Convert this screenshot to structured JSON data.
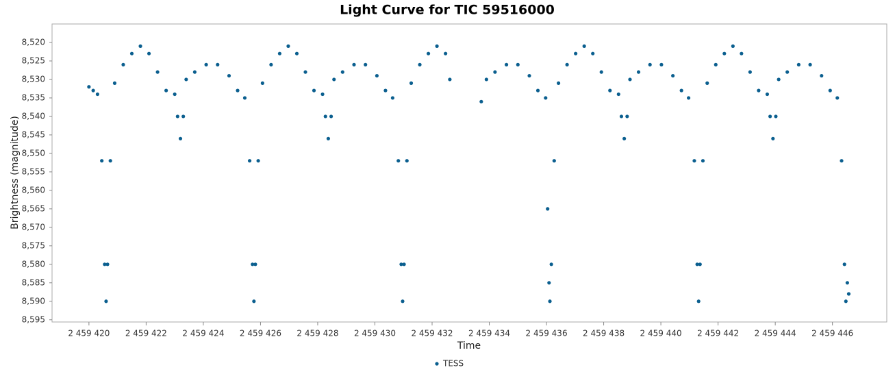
{
  "chart_data": {
    "type": "scatter",
    "title": "Light Curve for TIC 59516000",
    "x_label": "Time",
    "y_label": "Brightness (magnitude)",
    "series": [
      {
        "name": "TESS",
        "color": "#0b5f8f",
        "x": [
          2459420.0,
          2459420.15,
          2459420.3,
          2459420.45,
          2459420.55,
          2459420.6,
          2459420.65,
          2459420.75,
          2459420.9,
          2459421.2,
          2459421.5,
          2459421.8,
          2459422.1,
          2459422.4,
          2459422.7,
          2459423.0,
          2459423.1,
          2459423.2,
          2459423.3,
          2459423.4,
          2459423.7,
          2459424.1,
          2459424.5,
          2459424.9,
          2459425.2,
          2459425.45,
          2459425.62,
          2459425.72,
          2459425.77,
          2459425.82,
          2459425.92,
          2459426.07,
          2459426.37,
          2459426.67,
          2459426.97,
          2459427.27,
          2459427.57,
          2459427.87,
          2459428.17,
          2459428.27,
          2459428.37,
          2459428.47,
          2459428.57,
          2459428.87,
          2459429.27,
          2459429.67,
          2459430.07,
          2459430.37,
          2459430.62,
          2459430.82,
          2459430.92,
          2459430.97,
          2459431.02,
          2459431.12,
          2459431.27,
          2459431.57,
          2459431.87,
          2459432.17,
          2459432.47,
          2459432.62,
          2459433.72,
          2459433.9,
          2459434.2,
          2459434.6,
          2459435.0,
          2459435.4,
          2459435.7,
          2459435.97,
          2459436.04,
          2459436.09,
          2459436.12,
          2459436.17,
          2459436.27,
          2459436.42,
          2459436.72,
          2459437.02,
          2459437.32,
          2459437.62,
          2459437.92,
          2459438.22,
          2459438.52,
          2459438.62,
          2459438.72,
          2459438.82,
          2459438.92,
          2459439.22,
          2459439.62,
          2459440.02,
          2459440.42,
          2459440.72,
          2459440.97,
          2459441.17,
          2459441.27,
          2459441.32,
          2459441.37,
          2459441.47,
          2459441.62,
          2459441.92,
          2459442.22,
          2459442.52,
          2459442.82,
          2459443.12,
          2459443.42,
          2459443.72,
          2459443.82,
          2459443.92,
          2459444.02,
          2459444.12,
          2459444.42,
          2459444.82,
          2459445.22,
          2459445.62,
          2459445.92,
          2459446.17,
          2459446.32,
          2459446.42,
          2459446.47,
          2459446.52,
          2459446.57
        ],
        "values": [
          8.532,
          8.533,
          8.534,
          8.552,
          8.58,
          8.59,
          8.58,
          8.552,
          8.531,
          8.526,
          8.523,
          8.521,
          8.523,
          8.528,
          8.533,
          8.534,
          8.54,
          8.546,
          8.54,
          8.53,
          8.528,
          8.526,
          8.526,
          8.529,
          8.533,
          8.535,
          8.552,
          8.58,
          8.59,
          8.58,
          8.552,
          8.531,
          8.526,
          8.523,
          8.521,
          8.523,
          8.528,
          8.533,
          8.534,
          8.54,
          8.546,
          8.54,
          8.53,
          8.528,
          8.526,
          8.526,
          8.529,
          8.533,
          8.535,
          8.552,
          8.58,
          8.59,
          8.58,
          8.552,
          8.531,
          8.526,
          8.523,
          8.521,
          8.523,
          8.53,
          8.536,
          8.53,
          8.528,
          8.526,
          8.526,
          8.529,
          8.533,
          8.535,
          8.565,
          8.585,
          8.59,
          8.58,
          8.552,
          8.531,
          8.526,
          8.523,
          8.521,
          8.523,
          8.528,
          8.533,
          8.534,
          8.54,
          8.546,
          8.54,
          8.53,
          8.528,
          8.526,
          8.526,
          8.529,
          8.533,
          8.535,
          8.552,
          8.58,
          8.59,
          8.58,
          8.552,
          8.531,
          8.526,
          8.523,
          8.521,
          8.523,
          8.528,
          8.533,
          8.534,
          8.54,
          8.546,
          8.54,
          8.53,
          8.528,
          8.526,
          8.526,
          8.529,
          8.533,
          8.535,
          8.552,
          8.58,
          8.59,
          8.585,
          8.588
        ]
      }
    ],
    "xlim": [
      2459418.71,
      2459447.9
    ],
    "xticks": [
      {
        "value": 2459420,
        "label": "2 459 420"
      },
      {
        "value": 2459422,
        "label": "2 459 422"
      },
      {
        "value": 2459424,
        "label": "2 459 424"
      },
      {
        "value": 2459426,
        "label": "2 459 426"
      },
      {
        "value": 2459428,
        "label": "2 459 428"
      },
      {
        "value": 2459430,
        "label": "2 459 430"
      },
      {
        "value": 2459432,
        "label": "2 459 432"
      },
      {
        "value": 2459434,
        "label": "2 459 434"
      },
      {
        "value": 2459436,
        "label": "2 459 436"
      },
      {
        "value": 2459438,
        "label": "2 459 438"
      },
      {
        "value": 2459440,
        "label": "2 459 440"
      },
      {
        "value": 2459442,
        "label": "2 459 442"
      },
      {
        "value": 2459444,
        "label": "2 459 444"
      },
      {
        "value": 2459446,
        "label": "2 459 446"
      }
    ],
    "ylim": [
      8.5956,
      8.515
    ],
    "yticks": [
      {
        "value": 8.52,
        "label": "8,520"
      },
      {
        "value": 8.525,
        "label": "8,525"
      },
      {
        "value": 8.53,
        "label": "8,530"
      },
      {
        "value": 8.535,
        "label": "8,535"
      },
      {
        "value": 8.54,
        "label": "8,540"
      },
      {
        "value": 8.545,
        "label": "8,545"
      },
      {
        "value": 8.55,
        "label": "8,550"
      },
      {
        "value": 8.555,
        "label": "8,555"
      },
      {
        "value": 8.56,
        "label": "8,560"
      },
      {
        "value": 8.565,
        "label": "8,565"
      },
      {
        "value": 8.57,
        "label": "8,570"
      },
      {
        "value": 8.575,
        "label": "8,575"
      },
      {
        "value": 8.58,
        "label": "8,580"
      },
      {
        "value": 8.585,
        "label": "8,585"
      },
      {
        "value": 8.59,
        "label": "8,590"
      },
      {
        "value": 8.595,
        "label": "8,595"
      }
    ],
    "grid": false,
    "legend": "bottom"
  }
}
